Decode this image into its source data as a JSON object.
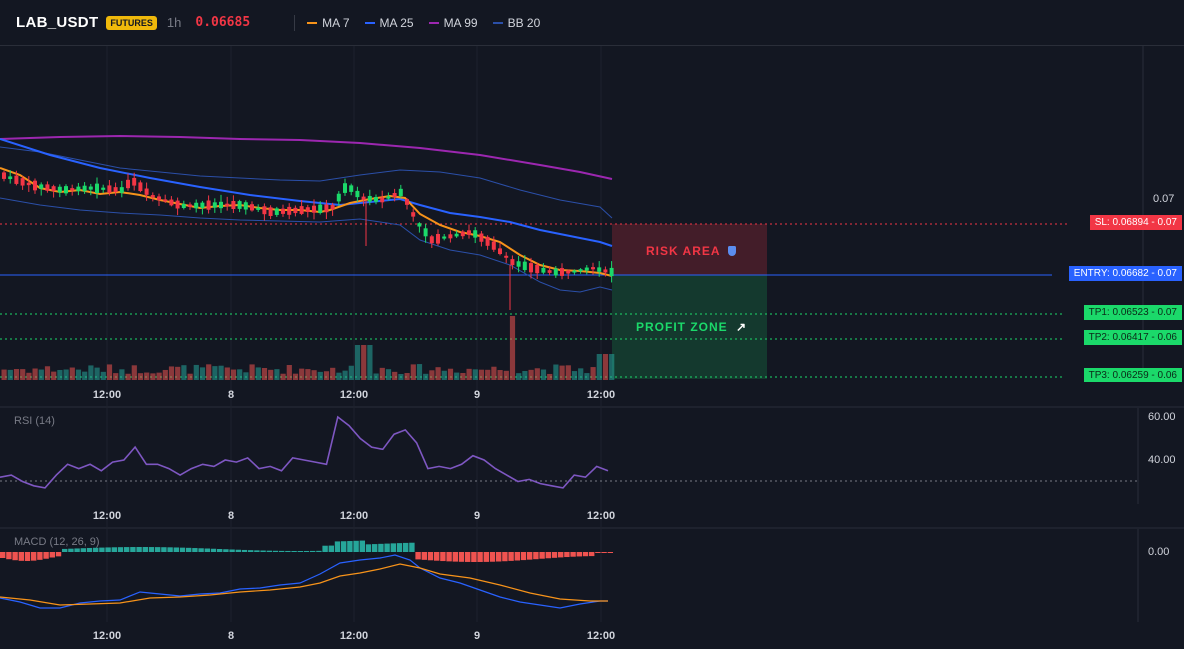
{
  "header": {
    "symbol": "LAB_USDT",
    "badge": "FUTURES",
    "timeframe": "1h",
    "last_price": "0.06685",
    "indicators": [
      {
        "label": "MA 7",
        "color": "#f7931a"
      },
      {
        "label": "MA 25",
        "color": "#2962ff"
      },
      {
        "label": "MA 99",
        "color": "#9c27b0"
      },
      {
        "label": "BB 20",
        "color": "#2b4fa8"
      }
    ]
  },
  "main": {
    "price_axis_label": "0.07",
    "x_ticks": [
      "12:00",
      "8",
      "12:00",
      "9",
      "12:00"
    ],
    "levels": {
      "sl": "SL: 0.06894 - 0.07",
      "entry": "ENTRY: 0.06682 - 0.07",
      "tp1": "TP1: 0.06523 - 0.07",
      "tp2": "TP2: 0.06417 - 0.06",
      "tp3": "TP3: 0.06259 - 0.06"
    },
    "risk_label": "RISK AREA",
    "profit_label": "PROFIT ZONE",
    "colors": {
      "up": "#26a69a",
      "up_bright": "#1bd96a",
      "down": "#f23645",
      "risk": "#f23645",
      "profit": "#1bd96a"
    }
  },
  "rsi": {
    "label": "RSI (14)",
    "axis": [
      "60.00",
      "40.00"
    ],
    "x_ticks": [
      "12:00",
      "8",
      "12:00",
      "9",
      "12:00"
    ],
    "color": "#7e57c2",
    "values": [
      32,
      33,
      30,
      28,
      27,
      33,
      38,
      36,
      38,
      35,
      39,
      40,
      46,
      38,
      38,
      36,
      33,
      36,
      38,
      37,
      40,
      39,
      41,
      36,
      37,
      35,
      41,
      40,
      39,
      38,
      60,
      56,
      50,
      46,
      45,
      52,
      54,
      48,
      36,
      37,
      36,
      38,
      42,
      40,
      36,
      33,
      30,
      31,
      29,
      28,
      27,
      33,
      32,
      37,
      35
    ]
  },
  "macd": {
    "label": "MACD (12, 26, 9)",
    "axis": [
      "0.00"
    ],
    "x_ticks": [
      "12:00",
      "8",
      "12:00",
      "9",
      "12:00"
    ],
    "colors": {
      "pos": "#26a69a",
      "neg": "#ef5350",
      "macd": "#2962ff",
      "signal": "#f7931a"
    }
  }
}
